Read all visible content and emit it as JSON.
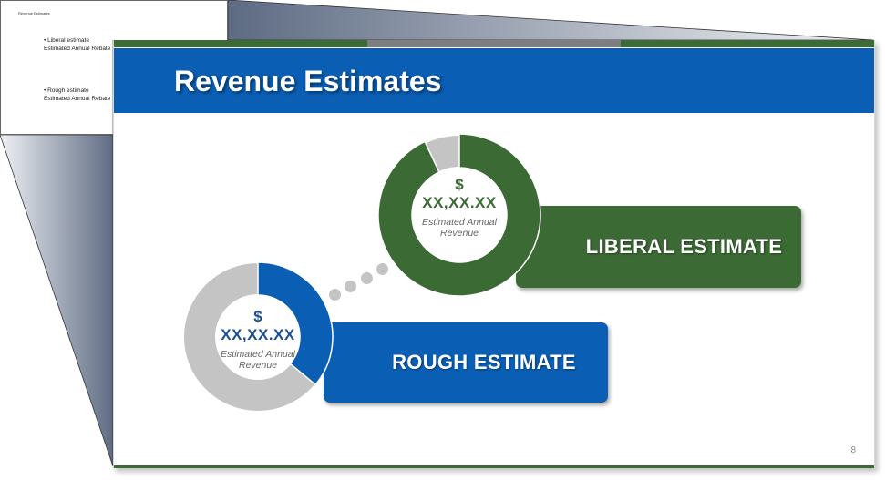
{
  "notes": {
    "title": "Revenue Estimates",
    "items": [
      {
        "bullet": "• Liberal estimate",
        "sub": "Estimated Annual Rebate"
      },
      {
        "bullet": "• Rough estimate",
        "sub": "Estimated Annual Rebate"
      }
    ]
  },
  "slide": {
    "title": "Revenue Estimates",
    "page_number": "8",
    "liberal": {
      "label": "LIBERAL ESTIMATE",
      "currency": "$",
      "amount": "XX,XX.XX",
      "caption_line1": "Estimated Annual",
      "caption_line2": "Revenue",
      "fill_fraction": 0.93,
      "color": "#3c6a35"
    },
    "rough": {
      "label": "ROUGH ESTIMATE",
      "currency": "$",
      "amount": "XX,XX.XX",
      "caption_line1": "Estimated Annual",
      "caption_line2": "Revenue",
      "fill_fraction": 0.36,
      "color": "#0a5fb4"
    }
  },
  "colors": {
    "header_blue": "#0a5fb4",
    "green": "#3c6a35",
    "gray_band": "#7e7e7e",
    "ring_gray": "#c4c4c4"
  }
}
